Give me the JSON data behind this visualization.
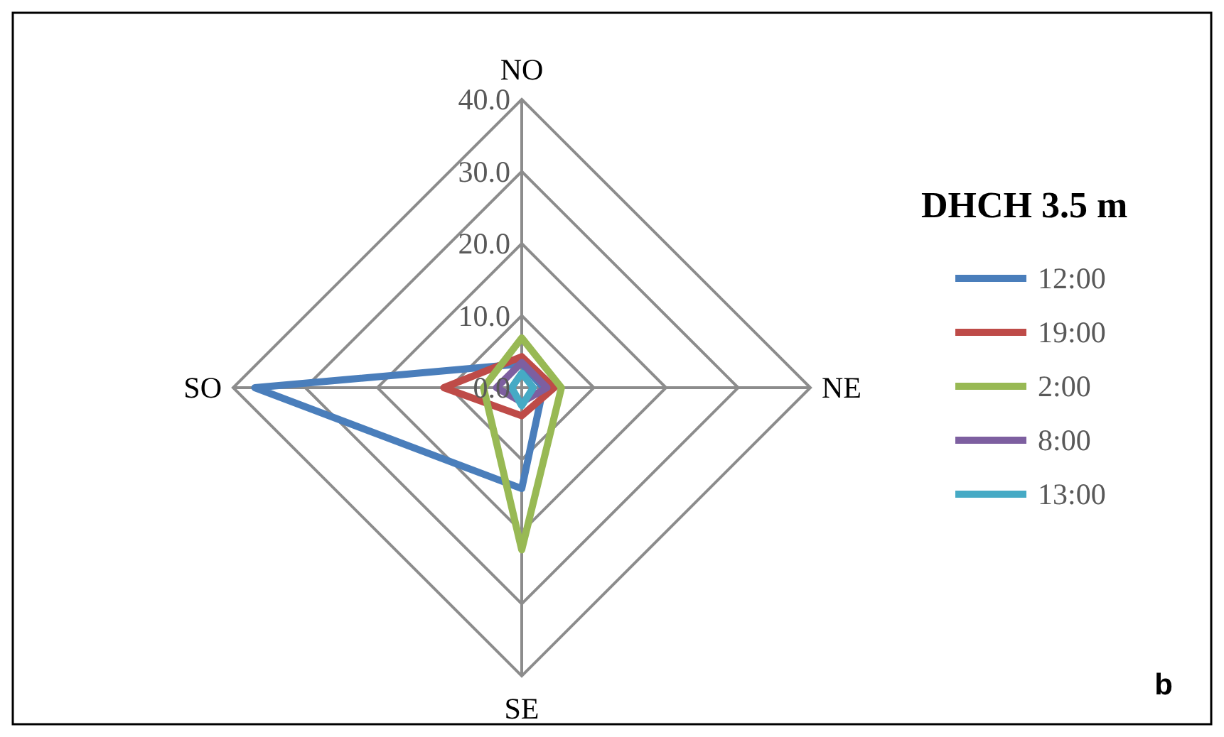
{
  "chart_data": {
    "type": "radar",
    "legend_title": "DHCH  3.5 m",
    "categories": [
      "NO",
      "NE",
      "SE",
      "SO"
    ],
    "ylim": [
      0,
      40
    ],
    "yticks": [
      {
        "value": 0,
        "label": "0.0"
      },
      {
        "value": 10,
        "label": "10.0"
      },
      {
        "value": 20,
        "label": "20.0"
      },
      {
        "value": 30,
        "label": "30.0"
      },
      {
        "value": 40,
        "label": "40.0"
      }
    ],
    "grid": true,
    "legend": "right",
    "marker": "none",
    "line_style": "solid",
    "series": [
      {
        "name": "12:00",
        "color": "#4a7ebb",
        "values": [
          3.3,
          3,
          14,
          37
        ]
      },
      {
        "name": "19:00",
        "color": "#be4b48",
        "values": [
          4.3,
          4.5,
          3.9,
          10.8
        ]
      },
      {
        "name": "2:00",
        "color": "#98b954",
        "values": [
          6.9,
          5.5,
          22.5,
          5.3
        ]
      },
      {
        "name": "8:00",
        "color": "#7d5fa0",
        "values": [
          3.5,
          3.5,
          2,
          3.5
        ]
      },
      {
        "name": "13:00",
        "color": "#46aac5",
        "values": [
          2,
          1.6,
          2.5,
          1.4
        ]
      }
    ],
    "annotations": [
      "b"
    ]
  }
}
